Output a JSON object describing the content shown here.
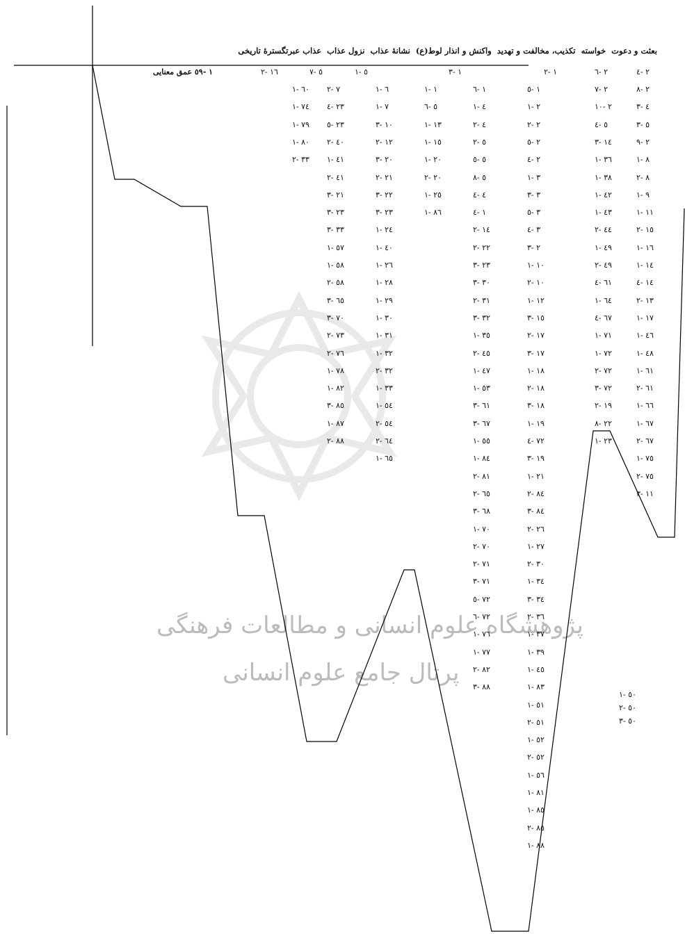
{
  "header": {
    "cols": [
      "بعثت و دعوت",
      "خواسته",
      "تکذیب، مخالفت و تهدید",
      "واکنش و انذار لوط(ع)",
      "نشانهٔ عذاب",
      "نزول عذاب",
      "عذاب عبرتگسترهٔ تاریخی"
    ],
    "depth_label": "عمق معنایی",
    "first_row": [
      "۲ -٤",
      "۲ -٦",
      "۱ -۲",
      "۱ -۳",
      "٥ -۱",
      "٥ -۷",
      "۱٦ -۲",
      "۱ -٥٩"
    ]
  },
  "columns": [
    [
      "۲ -۸",
      "٤ -۳",
      "٥ -۳",
      "۲ -۹",
      "۸ -۱",
      "۸ -۲",
      "۹ -۱",
      "۱۱ -۱",
      "۱٥ -۲",
      "۱٦ -۱",
      "۱٤ -۱",
      "۱٤ -٤",
      "۱۳ -۲",
      "۱۷ -۱",
      "٤٦ -۱",
      "٤۸ -۱",
      "٦۱ -۱",
      "٦۱ -۲",
      "٦٦ -۱",
      "٦۷ -۱",
      "٦۷ -۲",
      "۷٥ -۱",
      "۷٥ -۲",
      "۱۱ -۳"
    ],
    [
      "۲ -۷",
      "۲ -۱۰",
      "٥ -٤",
      "۱٤ -۳",
      "۳٦ -۱",
      "۳۸ -۱",
      "٤۲ -۱",
      "٤۳ -۱",
      "٤٤ -۲",
      "٤۹ -۱",
      "٤۹ -۲",
      "٦۱ -٤",
      "٦٤ -۱",
      "٦۷ -٤",
      "۷۱ -۱",
      "۷۲ -۱",
      "۷۲ -۲",
      "۷۲ -۳",
      "۱۹ -۲",
      "۲۲ -۸",
      "۲۳ -۱"
    ],
    [
      "۱ -٥",
      "۲ -۱",
      "۲ -۲",
      "۲ -٥",
      "۲ -٤",
      "۳ -۱",
      "۳ -۳",
      "۳ -٥",
      "۳ -٤",
      "۲ -۳",
      "۱۰ -۱",
      "۱۰ -۲",
      "۱۲ -۱",
      "۱٥ -۳",
      "۱۷ -۲",
      "۱۷ -۳",
      "۱۸ -۱",
      "۱۸ -۲",
      "۱۸ -۳",
      "۱۹ -۱",
      "۷۲ -٤",
      "۱۹ -۳",
      "۲۱ -۱",
      "۸٤ -۲",
      "۸٤ -۳",
      "۲٦ -۲",
      "۲۷ -۱",
      "۳۰ -۲",
      "۳٤ -۱",
      "۳٤ -۳",
      "۳٦ -۲",
      "۳۷ -۱",
      "۳۹ -۱",
      "٤٥ -۱",
      "۸۳ -۱",
      "٥۱ -۱",
      "٥۱ -۲",
      "٥۲ -۱",
      "٥۲ -۲",
      "٥٦ -۱",
      "۸۱ -۱",
      "۸٥ -۱",
      "۸٥ -۲",
      "۸۸ -۱"
    ],
    [
      "۱ -٦",
      "٤ -۱",
      "٤ -۲",
      "٥ -۲",
      "٥ -٥",
      "٥ -۸",
      "٤ -٤",
      "۱ -٤",
      "۱٤ -۲",
      "۲۲ -۲",
      "۲۳ -۳",
      "۳۰ -۳",
      "۳۱ -۲",
      "۳۲ -۳",
      "۳٥ -۱",
      "٤٥ -۲",
      "٤۷ -۱",
      "٥۳ -۱",
      "٦۱ -۳",
      "٦۷ -۳",
      "٥٥ -۱",
      "۸٤ -۱",
      "۸۱ -۲",
      "٦٥ -۲",
      "٦۸ -۳",
      "۷۰ -۱",
      "۷۰ -۲",
      "۷۱ -۲",
      "۷۱ -۳",
      "۷۲ -٥",
      "۷۲ -٦",
      "۷٦ -۱",
      "۷۷ -۱",
      "۸۲ -۲",
      "۸۸ -۳"
    ],
    [
      "۱ -۱",
      "٥ -٦",
      "۱۳ -۱",
      "۱٥ -۱",
      "۲۰ -۱",
      "۲۰ -۲",
      "۲٥ -۱",
      "۸٦ -۱"
    ],
    [
      "٦ -۱",
      "۷ -۱",
      "۱۰ -۳",
      "۱۲ -۲",
      "۲۰ -۳",
      "۲۱ -۲",
      "۲۲ -۳",
      "۲۳ -۳",
      "۲٤ -۱",
      "٤۰ -۱",
      "۲٦ -۱",
      "۲۸ -۱",
      "۲۹ -۱",
      "۳۰ -۱",
      "۳۱ -۱",
      "۳۲ -۱",
      "۳۲ -۲",
      "۳۳ -۱",
      "٥٤ -۱",
      "٥٤ -۲",
      "٦٤ -۲",
      "٦٥ -۱"
    ],
    [
      "۷ -۲",
      "۲۳ -٤",
      "۲۳ -٥",
      "٤۰ -۲",
      "٤۱ -۱",
      "٤۱ -۲",
      "۲۱ -۳",
      "۲۳ -۳",
      "۳۳ -۳",
      "٥۷ -۱",
      "٥۸ -۱",
      "٥۸ -۲",
      "٦٥ -۳",
      "۷۰ -۳",
      "۷۳ -۲",
      "۷٦ -۲",
      "۷۸ -۱",
      "۸۲ -۱",
      "۸٥ -۳",
      "۸۷ -۱",
      "۸۸ -۲"
    ],
    [
      "٦۰ -۱",
      "۷٤ -۱",
      "۷۹ -۱",
      "۸۰ -۱",
      "۳۳ -۲"
    ],
    [
      "٥۰ -۱",
      "٥۰ -۲",
      "٥۰ -۳"
    ]
  ],
  "watermark": {
    "line1": "پژوهشگاه علوم انسانی و مطالعات فرهنگی",
    "line2": "پرتال جامع علوم انسانی"
  }
}
